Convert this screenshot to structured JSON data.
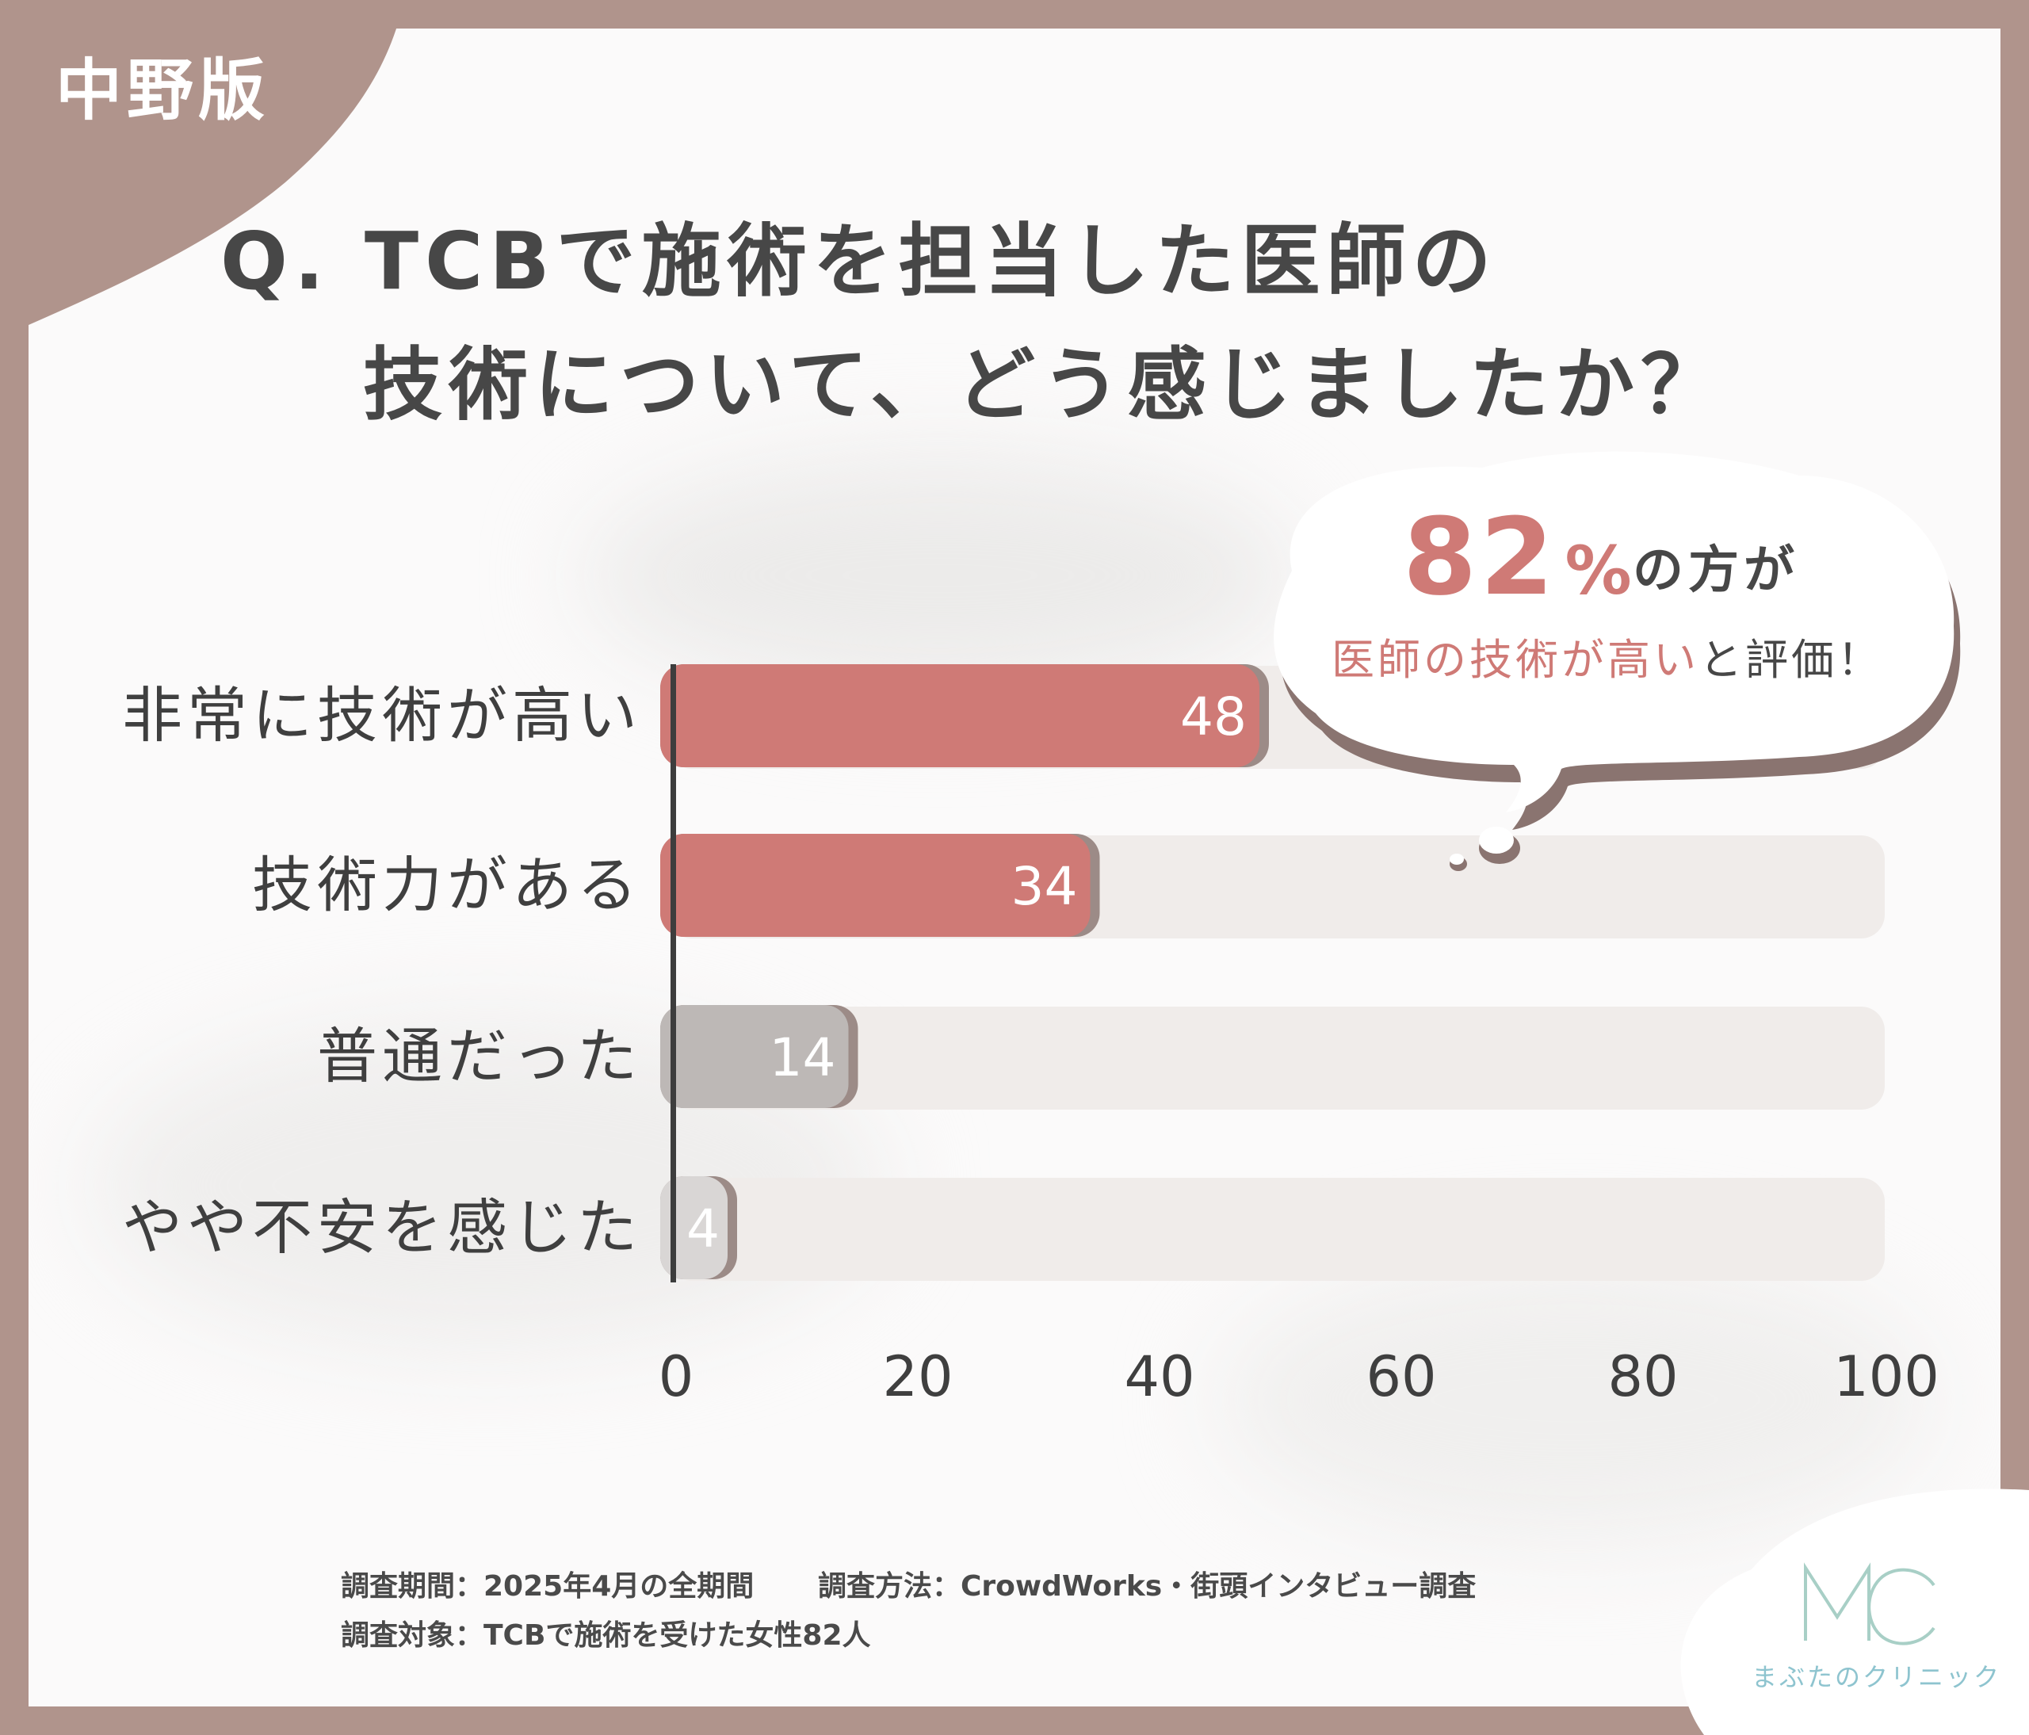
{
  "region_label": "中野版",
  "question": {
    "line1": "Q. TCBで施術を担当した医師の",
    "line2": "技術について、どう感じましたか？"
  },
  "callout": {
    "percent": "82",
    "percent_unit": "%",
    "suffix": "の方が",
    "line2_highlight": "医師の技術が高い",
    "line2_rest": "と評価！"
  },
  "colors": {
    "frame": "#b0948c",
    "positive_bar": "#cf7a76",
    "neutral_bar": "#bdb8b6",
    "weak_bar": "#d9d6d5",
    "track": "#f0ecea",
    "callout_text": "#cf7a76"
  },
  "chart_data": {
    "type": "bar",
    "orientation": "horizontal",
    "categories": [
      "非常に技術が高い",
      "技術力がある",
      "普通だった",
      "やや不安を感じた"
    ],
    "values": [
      48,
      34,
      14,
      4
    ],
    "data_labels": [
      "48",
      "34",
      "14",
      "4"
    ],
    "xlim": [
      0,
      100
    ],
    "x_ticks": [
      "0",
      "20",
      "40",
      "60",
      "80",
      "100"
    ],
    "grid": false,
    "bar_colors": [
      "#cf7a76",
      "#cf7a76",
      "#bdb8b6",
      "#d9d6d5"
    ]
  },
  "notes": {
    "period": "調査期間：2025年4月の全期間",
    "method": "調査方法：CrowdWorks・街頭インタビュー調査",
    "target": "調査対象：TCBで施術を受けた女性82人"
  },
  "logo": {
    "mark_icon": "mc-monogram-icon",
    "name": "まぶたのクリニック"
  }
}
